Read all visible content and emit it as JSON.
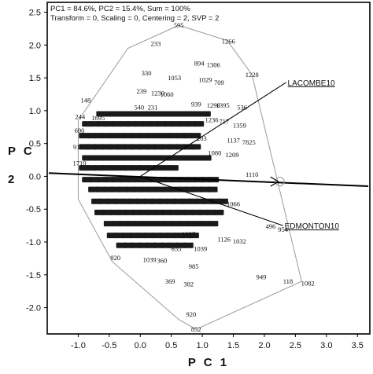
{
  "header": {
    "line1": "PC1 = 84.6%, PC2 = 15.4%, Sum = 100%",
    "line2": "Transform = 0, Scaling = 0, Centering = 2, SVP = 2"
  },
  "chart_data": {
    "type": "scatter",
    "title": "",
    "xlabel": "P C 1",
    "ylabel": "P C 2",
    "xlim": [
      -1.5,
      3.7
    ],
    "ylim": [
      -2.4,
      2.65
    ],
    "x_ticks": [
      "-1.0",
      "-0.5",
      "0.0",
      "0.5",
      "1.0",
      "1.5",
      "2.0",
      "2.5",
      "3.0",
      "3.5"
    ],
    "x_tick_values": [
      -1.0,
      -0.5,
      0.0,
      0.5,
      1.0,
      1.5,
      2.0,
      2.5,
      3.0,
      3.5
    ],
    "y_ticks": [
      "2.5",
      "2.0",
      "1.5",
      "1.0",
      "0.5",
      "0.0",
      "-0.5",
      "-1.0",
      "-1.5",
      "-2.0"
    ],
    "y_tick_values": [
      2.5,
      2.0,
      1.5,
      1.0,
      0.5,
      0.0,
      -0.5,
      -1.0,
      -1.5,
      -2.0
    ],
    "environment_vectors": [
      {
        "name": "LACOMBE10",
        "x": 2.35,
        "y": 1.43
      },
      {
        "name": "EDMONTON10",
        "x": 2.3,
        "y": -0.75
      }
    ],
    "average_environment_axis": {
      "from": [
        -1.5,
        0.05
      ],
      "to": [
        3.7,
        -0.15
      ],
      "circle": [
        2.25,
        -0.08
      ]
    },
    "hull": [
      [
        0.62,
        2.3
      ],
      [
        1.4,
        2.07
      ],
      [
        1.8,
        1.55
      ],
      [
        2.6,
        -1.6
      ],
      [
        0.9,
        -2.33
      ],
      [
        0.62,
        -2.18
      ],
      [
        -0.45,
        -1.3
      ],
      [
        -1.0,
        -0.35
      ],
      [
        -1.0,
        0.85
      ],
      [
        -0.2,
        1.95
      ],
      [
        0.62,
        2.3
      ]
    ],
    "labeled_points": [
      {
        "label": "595",
        "x": 0.62,
        "y": 2.3
      },
      {
        "label": "1266",
        "x": 1.42,
        "y": 2.06
      },
      {
        "label": "233",
        "x": 0.25,
        "y": 2.02
      },
      {
        "label": "894",
        "x": 0.95,
        "y": 1.72
      },
      {
        "label": "1306",
        "x": 1.18,
        "y": 1.7
      },
      {
        "label": "1228",
        "x": 1.8,
        "y": 1.55
      },
      {
        "label": "330",
        "x": 0.1,
        "y": 1.57
      },
      {
        "label": "1053",
        "x": 0.55,
        "y": 1.5
      },
      {
        "label": "1029",
        "x": 1.05,
        "y": 1.47
      },
      {
        "label": "709",
        "x": 1.27,
        "y": 1.43
      },
      {
        "label": "239",
        "x": 0.02,
        "y": 1.3
      },
      {
        "label": "1230",
        "x": 0.28,
        "y": 1.27
      },
      {
        "label": "1060",
        "x": 0.43,
        "y": 1.25
      },
      {
        "label": "148",
        "x": -0.88,
        "y": 1.16
      },
      {
        "label": "540",
        "x": -0.02,
        "y": 1.05
      },
      {
        "label": "231",
        "x": 0.2,
        "y": 1.05
      },
      {
        "label": "939",
        "x": 0.9,
        "y": 1.1
      },
      {
        "label": "1290",
        "x": 1.18,
        "y": 1.08
      },
      {
        "label": "1395",
        "x": 1.33,
        "y": 1.08
      },
      {
        "label": "536",
        "x": 1.64,
        "y": 1.05
      },
      {
        "label": "244",
        "x": -0.97,
        "y": 0.91
      },
      {
        "label": "1695",
        "x": -0.68,
        "y": 0.89
      },
      {
        "label": "1236",
        "x": 1.15,
        "y": 0.86
      },
      {
        "label": "717",
        "x": 1.35,
        "y": 0.84
      },
      {
        "label": "1359",
        "x": 1.6,
        "y": 0.78
      },
      {
        "label": "690",
        "x": -0.98,
        "y": 0.7
      },
      {
        "label": "203",
        "x": 0.99,
        "y": 0.58
      },
      {
        "label": "1137",
        "x": 1.5,
        "y": 0.55
      },
      {
        "label": "7825",
        "x": 1.75,
        "y": 0.52
      },
      {
        "label": "1080",
        "x": 1.2,
        "y": 0.36
      },
      {
        "label": "1209",
        "x": 1.48,
        "y": 0.33
      },
      {
        "label": "918",
        "x": -1.0,
        "y": 0.45
      },
      {
        "label": "1710",
        "x": -0.98,
        "y": 0.2
      },
      {
        "label": "1110",
        "x": 1.8,
        "y": 0.03
      },
      {
        "label": "1066",
        "x": 1.5,
        "y": -0.42
      },
      {
        "label": "496",
        "x": 2.1,
        "y": -0.76
      },
      {
        "label": "954",
        "x": 2.3,
        "y": -0.81
      },
      {
        "label": "1126",
        "x": 1.35,
        "y": -0.96
      },
      {
        "label": "1032",
        "x": 1.6,
        "y": -0.99
      },
      {
        "label": "1097",
        "x": 0.78,
        "y": -0.88
      },
      {
        "label": "1039",
        "x": 0.15,
        "y": -1.27
      },
      {
        "label": "920",
        "x": -0.4,
        "y": -1.24
      },
      {
        "label": "360",
        "x": 0.35,
        "y": -1.28
      },
      {
        "label": "655",
        "x": 0.58,
        "y": -1.1
      },
      {
        "label": "1039",
        "x": 0.97,
        "y": -1.1
      },
      {
        "label": "985",
        "x": 0.86,
        "y": -1.37
      },
      {
        "label": "949",
        "x": 1.95,
        "y": -1.53
      },
      {
        "label": "118",
        "x": 2.38,
        "y": -1.6
      },
      {
        "label": "1082",
        "x": 2.7,
        "y": -1.63
      },
      {
        "label": "369",
        "x": 0.48,
        "y": -1.6
      },
      {
        "label": "382",
        "x": 0.78,
        "y": -1.64
      },
      {
        "label": "920",
        "x": 0.82,
        "y": -2.1
      },
      {
        "label": "852",
        "x": 0.9,
        "y": -2.33
      }
    ]
  }
}
